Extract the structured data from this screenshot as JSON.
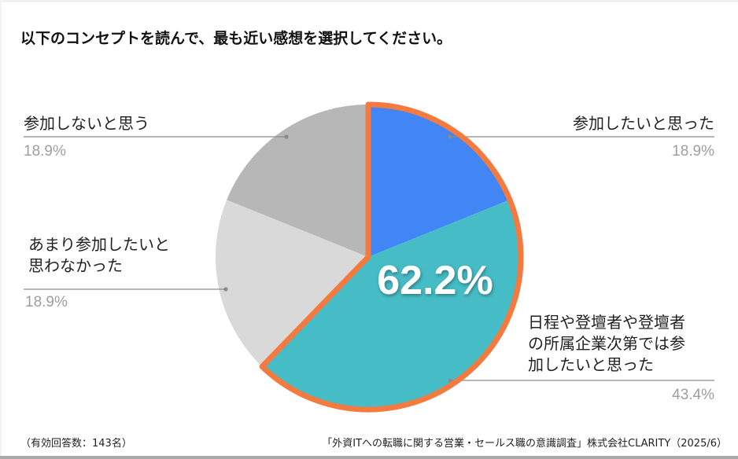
{
  "title": "以下のコンセプトを読んで、最も近い感想を選択してください。",
  "labels": [
    {
      "text": "参加したいと思った",
      "pct": "18.9%"
    },
    {
      "text_lines": [
        "日程や登壇者や登壇者",
        "の所属企業次第では参",
        "加したいと思った"
      ],
      "pct": "43.4%"
    },
    {
      "text_lines": [
        "あまり参加したいと",
        "思わなかった"
      ],
      "pct": "18.9%"
    },
    {
      "text": "参加しないと思う",
      "pct": "18.9%"
    }
  ],
  "highlight": {
    "label": "62.2%",
    "color": "#f47a3f"
  },
  "footer": {
    "left": "（有効回答数：143名）",
    "right": "「外資ITへの転職に関する営業・セールス職の意識調査」株式会社CLARITY（2025/6）"
  },
  "chart_data": {
    "type": "pie",
    "title": "以下のコンセプトを読んで、最も近い感想を選択してください。",
    "categories": [
      "参加したいと思った",
      "日程や登壇者や登壇者の所属企業次第では参加したいと思った",
      "あまり参加したいと思わなかった",
      "参加しないと思う"
    ],
    "values": [
      18.9,
      43.4,
      18.9,
      18.9
    ],
    "colors": [
      "#4285f4",
      "#46bdc6",
      "#d9d9d9",
      "#b7b7b7"
    ],
    "start_angle": "12 o'clock, clockwise",
    "annotations": [
      {
        "text": "62.2%",
        "note": "combined highlight of first two slices (18.9% + 43.4%), outlined in orange"
      }
    ],
    "sample_size": 143,
    "legend": "none (leader-line labels)"
  }
}
